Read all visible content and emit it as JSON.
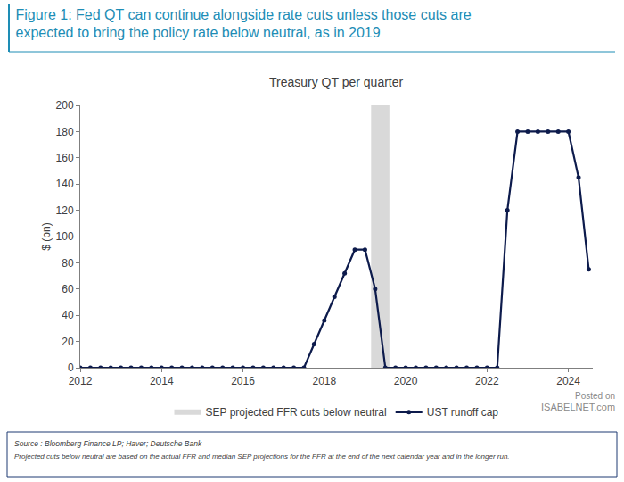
{
  "chart_data": {
    "type": "line",
    "title": "Figure 1: Fed QT can continue alongside rate cuts unless those cuts are expected to bring the policy rate below neutral, as in 2019",
    "subtitle": "Treasury QT per quarter",
    "y_label": "$ (bn)",
    "x": [
      2012,
      2012.25,
      2012.5,
      2012.75,
      2013,
      2013.25,
      2013.5,
      2013.75,
      2014,
      2014.25,
      2014.5,
      2014.75,
      2015,
      2015.25,
      2015.5,
      2015.75,
      2016,
      2016.25,
      2016.5,
      2016.75,
      2017,
      2017.25,
      2017.5,
      2017.75,
      2018,
      2018.25,
      2018.5,
      2018.75,
      2019,
      2019.25,
      2019.5,
      2019.75,
      2020,
      2020.25,
      2020.5,
      2020.75,
      2021,
      2021.25,
      2021.5,
      2021.75,
      2022,
      2022.25,
      2022.5,
      2022.75,
      2023,
      2023.25,
      2023.5,
      2023.75,
      2024,
      2024.25,
      2024.5
    ],
    "series": [
      {
        "name": "UST runoff cap",
        "color": "#0d1b4c",
        "marker": "circle",
        "line_style": "solid",
        "values": [
          0,
          0,
          0,
          0,
          0,
          0,
          0,
          0,
          0,
          0,
          0,
          0,
          0,
          0,
          0,
          0,
          0,
          0,
          0,
          0,
          0,
          0,
          0,
          18,
          36,
          54,
          72,
          90,
          90,
          60,
          0,
          0,
          0,
          0,
          0,
          0,
          0,
          0,
          0,
          0,
          0,
          0,
          120,
          180,
          180,
          180,
          180,
          180,
          180,
          145,
          75
        ]
      }
    ],
    "shaded_regions": [
      {
        "name": "SEP projected FFR cuts below neutral",
        "x0": 2019.15,
        "x1": 2019.6,
        "color": "#d9d9d9"
      }
    ],
    "xlim": [
      2012,
      2024.6
    ],
    "xticks": [
      2012,
      2014,
      2016,
      2018,
      2020,
      2022,
      2024
    ],
    "ylim": [
      0,
      200
    ],
    "yticks": [
      0,
      20,
      40,
      60,
      80,
      100,
      120,
      140,
      160,
      180,
      200
    ],
    "grid": false,
    "legend": "bottom",
    "source": "Source : Bloomberg Finance LP; Haver; Deutsche Bank",
    "note": "Projected cuts below neutral are based on the actual FFR and median SEP projections for the FFR at the end of the next calendar year and in the longer run.",
    "annotations": [
      {
        "text": "Posted on"
      },
      {
        "text": "ISABELNET.com"
      }
    ]
  }
}
